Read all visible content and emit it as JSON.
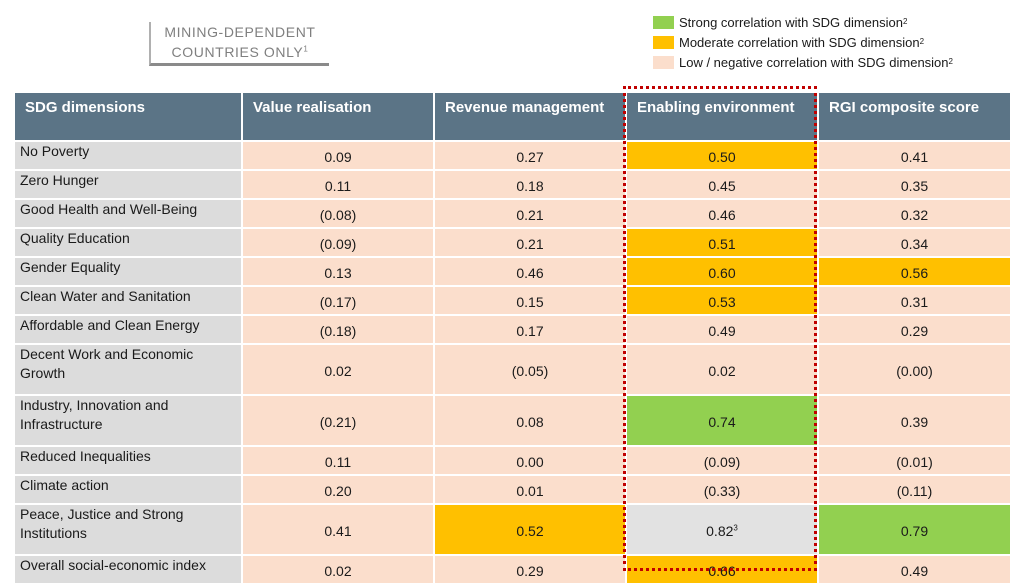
{
  "filter": {
    "line1": "MINING-DEPENDENT",
    "line2": "COUNTRIES  ONLY",
    "note": "1"
  },
  "legend": [
    {
      "label": "Strong correlation with SDG dimension",
      "note": "2",
      "color": "#92d050"
    },
    {
      "label": "Moderate correlation with SDG dimension",
      "note": "2",
      "color": "#ffc000"
    },
    {
      "label": "Low / negative correlation with SDG dimension",
      "note": "2",
      "color": "#fbdecc"
    }
  ],
  "table": {
    "headers": [
      "SDG dimensions",
      "Value realisation",
      "Revenue management",
      "Enabling environment",
      "RGI composite score"
    ],
    "rows": [
      {
        "label": "No Poverty",
        "values": [
          "0.09",
          "0.27",
          "0.50",
          "0.41"
        ]
      },
      {
        "label": "Zero Hunger",
        "values": [
          "0.11",
          "0.18",
          "0.45",
          "0.35"
        ]
      },
      {
        "label": "Good Health and Well-Being",
        "values": [
          "(0.08)",
          "0.21",
          "0.46",
          "0.32"
        ]
      },
      {
        "label": "Quality Education",
        "values": [
          "(0.09)",
          "0.21",
          "0.51",
          "0.34"
        ]
      },
      {
        "label": "Gender Equality",
        "values": [
          "0.13",
          "0.46",
          "0.60",
          "0.56"
        ]
      },
      {
        "label": "Clean Water and Sanitation",
        "values": [
          "(0.17)",
          "0.15",
          "0.53",
          "0.31"
        ]
      },
      {
        "label": "Affordable and Clean Energy",
        "values": [
          "(0.18)",
          "0.17",
          "0.49",
          "0.29"
        ]
      },
      {
        "label": "Decent Work and Economic Growth",
        "values": [
          "0.02",
          "(0.05)",
          "0.02",
          "(0.00)"
        ]
      },
      {
        "label": "Industry, Innovation and Infrastructure",
        "values": [
          "(0.21)",
          "0.08",
          "0.74",
          "0.39"
        ]
      },
      {
        "label": "Reduced Inequalities",
        "values": [
          "0.11",
          "0.00",
          "(0.09)",
          "(0.01)"
        ]
      },
      {
        "label": "Climate action",
        "values": [
          "0.20",
          "0.01",
          "(0.33)",
          "(0.11)"
        ]
      },
      {
        "label": "Peace, Justice and Strong Institutions",
        "values": [
          "0.41",
          "0.52",
          "0.82",
          "0.79"
        ],
        "note": "3"
      },
      {
        "label": "Overall social-economic index",
        "values": [
          "0.02",
          "0.29",
          "0.66",
          "0.49"
        ]
      }
    ]
  }
}
